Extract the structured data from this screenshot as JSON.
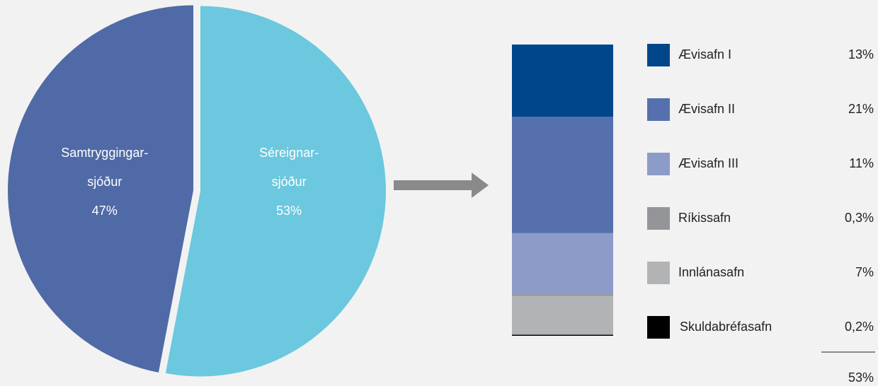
{
  "chart_data": [
    {
      "type": "pie",
      "categories": [
        [
          "Samtryggingar-",
          "sjóður"
        ],
        [
          "Séreignar-",
          "sjóður"
        ]
      ],
      "values": [
        47,
        53
      ],
      "value_labels": [
        "47%",
        "53%"
      ],
      "colors": [
        "#4f6aa6",
        "#6bc8de"
      ]
    },
    {
      "type": "stacked-bar",
      "series": [
        {
          "name": "Ævisafn I",
          "color": "#00468b",
          "values": [
            13
          ],
          "value_labels": [
            "13%"
          ]
        },
        {
          "name": "Ævisafn II",
          "color": "#5670ad",
          "values": [
            21
          ],
          "value_labels": [
            "21%"
          ]
        },
        {
          "name": "Ævisafn III",
          "color": "#8c9bc8",
          "values": [
            11
          ],
          "value_labels": [
            "11%"
          ]
        },
        {
          "name": "Ríkissafn",
          "color": "#939598",
          "values": [
            0.3
          ],
          "value_labels": [
            "0,3%"
          ]
        },
        {
          "name": "Innlánasafn",
          "color": "#b1b3b5",
          "values": [
            7
          ],
          "value_labels": [
            "7%"
          ]
        },
        {
          "name": "Skuldabréfasafn",
          "color": "#000000",
          "values": [
            0.2
          ],
          "value_labels": [
            "0,2%"
          ]
        }
      ],
      "total": 53,
      "total_label": "53%"
    }
  ]
}
